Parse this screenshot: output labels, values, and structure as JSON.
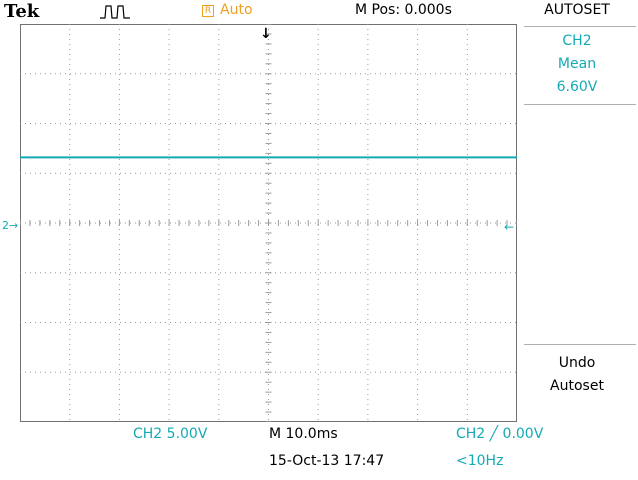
{
  "header": {
    "brand": "Tek",
    "trigger_icon": "trigger-pulse-icon",
    "run_icon_letter": "R",
    "run_mode": "Auto",
    "position": "M Pos: 0.000s"
  },
  "menu": {
    "title": "AUTOSET",
    "measurement": {
      "channel": "CH2",
      "type": "Mean",
      "value": "6.60V"
    },
    "undo": {
      "line1": "Undo",
      "line2": "Autoset"
    }
  },
  "footer": {
    "channel_scale": "CH2  5.00V",
    "timebase": "M 10.0ms",
    "trigger": "CH2 ╱ 0.00V",
    "datetime": "15-Oct-13 17:47",
    "frequency": "<10Hz"
  },
  "markers": {
    "channel_marker": "2→",
    "trigger_level_marker": "←",
    "trigger_position_marker": "↓"
  },
  "colors": {
    "channel2": "#14aab4",
    "run_status": "#f0a020",
    "graticule": "#9a9a9a",
    "background": "#ffffff"
  },
  "waveform": {
    "channel": "CH2",
    "volts_per_div": 5.0,
    "mean_volts": 6.6,
    "shape": "flat"
  }
}
